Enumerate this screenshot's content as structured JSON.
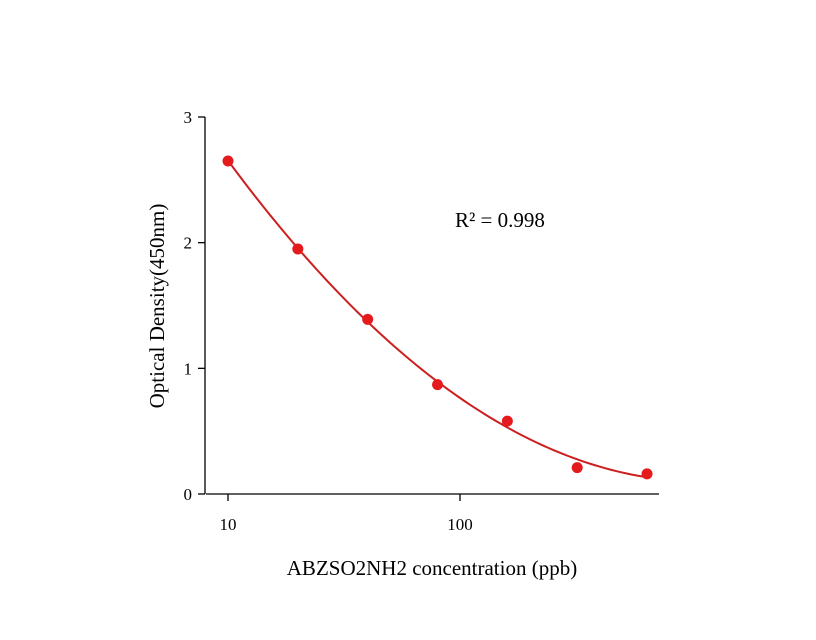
{
  "chart_data": {
    "type": "scatter",
    "title": "",
    "xlabel": "ABZSO2NH2 concentration (ppb)",
    "ylabel": "Optical Density(450nm)",
    "x_scale": "log",
    "xlim": [
      9.2,
      650
    ],
    "ylim": [
      0,
      3
    ],
    "x_ticks": [
      10,
      100
    ],
    "x_tick_labels": [
      "10",
      "100"
    ],
    "y_ticks": [
      0,
      1,
      2,
      3
    ],
    "y_tick_labels": [
      "0",
      "1",
      "2",
      "3"
    ],
    "grid": false,
    "series": [
      {
        "color": "#e41a1c",
        "x": [
          10,
          20,
          40,
          80,
          160,
          320,
          640
        ],
        "y": [
          2.65,
          1.95,
          1.39,
          0.87,
          0.58,
          0.21,
          0.16
        ]
      }
    ],
    "fit_line_color": "#cc1f1f",
    "annotation": "R² = 0.998"
  }
}
